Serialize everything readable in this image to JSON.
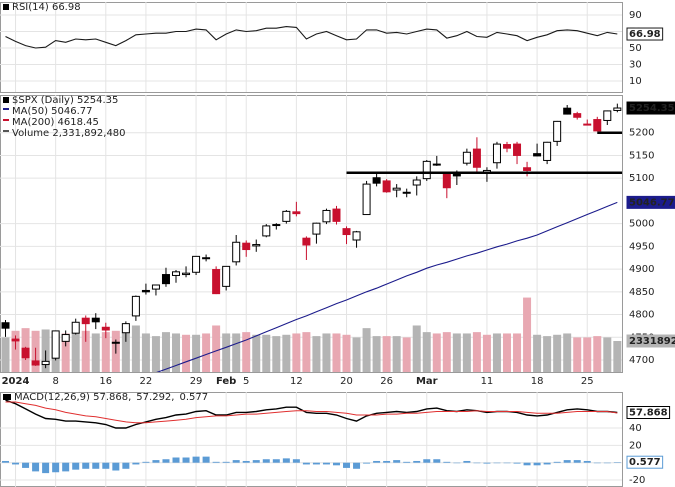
{
  "chart_data": [
    {
      "type": "line",
      "legend": [
        {
          "text": "RSI(14) 66.98",
          "color": "#000000"
        }
      ],
      "series": [
        {
          "type": "line",
          "color": "#1a1a1a",
          "box_style": "outline",
          "values": [
            64,
            58,
            53,
            50,
            51,
            59,
            57,
            61,
            60,
            61,
            57,
            53,
            59,
            66,
            67,
            68,
            68,
            70,
            70,
            73,
            72,
            60,
            67,
            72,
            70,
            71,
            74,
            74,
            76,
            75,
            61,
            67,
            70,
            65,
            60,
            61,
            72,
            72,
            68,
            69,
            67,
            70,
            73,
            72,
            62,
            65,
            70,
            64,
            63,
            69,
            67,
            65,
            59,
            63,
            66,
            71,
            72,
            71,
            68,
            65,
            69,
            66.98
          ]
        }
      ],
      "ylim": [
        -3.3,
        105.8
      ],
      "yticks": [
        10,
        30,
        50,
        70,
        90
      ],
      "grid": true
    },
    {
      "type": "candlestick",
      "legend": [
        {
          "text": "$SPX (Daily) 5254.35",
          "color": "#000000"
        },
        {
          "text": "MA(50) 5046.77",
          "color": "#1c1c8c"
        },
        {
          "text": "MA(200) 4618.45",
          "color": "#c8102e"
        },
        {
          "text": "Volume 2,331,892,480",
          "color": "#555555"
        }
      ],
      "categories": [
        null,
        "2024",
        null,
        null,
        null,
        "8",
        null,
        null,
        null,
        null,
        "16",
        null,
        null,
        null,
        "22",
        null,
        null,
        null,
        null,
        "29",
        null,
        null,
        "Feb",
        null,
        "5",
        null,
        null,
        null,
        null,
        "12",
        null,
        null,
        null,
        null,
        "20",
        null,
        null,
        null,
        "26",
        null,
        null,
        null,
        "Mar",
        null,
        null,
        null,
        null,
        null,
        "11",
        null,
        null,
        null,
        null,
        "18",
        null,
        null,
        null,
        null,
        "25",
        null,
        null,
        null
      ],
      "ohlc": {
        "open": [
          4782,
          4746,
          4726,
          4698,
          4690,
          4704,
          4741,
          4759,
          4792,
          4792,
          4772,
          4739,
          4760,
          4797,
          4853,
          4856,
          4888,
          4886,
          4888,
          4893,
          4925,
          4899,
          4862,
          4916,
          4957,
          4951,
          4973,
          4996,
          5005,
          5026,
          4968,
          4977,
          5004,
          5032,
          4989,
          4964,
          5020,
          5101,
          5094,
          5074,
          5067,
          5085,
          5099,
          5131,
          5111,
          5109,
          5133,
          5164,
          5111,
          5134,
          5174,
          5175,
          5123,
          5154,
          5139,
          5181,
          5254,
          5242,
          5219,
          5229,
          5227,
          5249
        ],
        "high": [
          4788,
          4754,
          4729,
          4727,
          4721,
          4765,
          4765,
          4791,
          4798,
          4803,
          4782,
          4745,
          4785,
          4842,
          4868,
          4866,
          4903,
          4898,
          4906,
          4929,
          4932,
          4906,
          4906,
          4975,
          4963,
          4965,
          4999,
          5001,
          5030,
          5048,
          4972,
          5002,
          5033,
          5039,
          4994,
          4984,
          5094,
          5111,
          5098,
          5087,
          5077,
          5104,
          5140,
          5149,
          5114,
          5117,
          5165,
          5190,
          5124,
          5180,
          5180,
          5180,
          5136,
          5176,
          5180,
          5226,
          5261,
          5246,
          5229,
          5235,
          5249,
          5264
        ],
        "low": [
          4751,
          4723,
          4700,
          4687,
          4682,
          4699,
          4730,
          4756,
          4740,
          4768,
          4748,
          4714,
          4740,
          4786,
          4844,
          4842,
          4861,
          4870,
          4882,
          4887,
          4917,
          4845,
          4853,
          4908,
          4927,
          4938,
          4970,
          4987,
          5000,
          5016,
          4920,
          4956,
          4999,
          4998,
          4955,
          4947,
          5020,
          5082,
          5068,
          5058,
          5058,
          5062,
          5094,
          5127,
          5056,
          5085,
          5128,
          5114,
          5092,
          5121,
          5157,
          5131,
          5104,
          5148,
          5131,
          5171,
          5240,
          5229,
          5216,
          5203,
          5217,
          5245
        ],
        "close": [
          4770,
          4742,
          4705,
          4689,
          4697,
          4764,
          4756,
          4783,
          4780,
          4784,
          4766,
          4739,
          4780,
          4840,
          4850,
          4865,
          4868,
          4894,
          4891,
          4928,
          4925,
          4846,
          4906,
          4959,
          4943,
          4954,
          4995,
          4998,
          5027,
          5022,
          4953,
          5001,
          5029,
          5005,
          4976,
          4982,
          5087,
          5089,
          5070,
          5078,
          5069,
          5096,
          5137,
          5131,
          5079,
          5105,
          5157,
          5124,
          5117,
          5175,
          5166,
          5150,
          5117,
          5149,
          5179,
          5225,
          5241,
          5234,
          5218,
          5204,
          5248,
          5254.35
        ]
      },
      "up_color": "#000000",
      "down_color": "#c8102e",
      "box_color": "#000000",
      "series": [
        {
          "type": "line",
          "color": "#1c1c8c",
          "box_style": "filled",
          "values": [
            4560,
            4568,
            4575,
            4582,
            4590,
            4597,
            4605,
            4612,
            4620,
            4627,
            4635,
            4642,
            4650,
            4658,
            4665,
            4672,
            4680,
            4688,
            4696,
            4704,
            4712,
            4720,
            4728,
            4736,
            4744,
            4753,
            4762,
            4771,
            4780,
            4789,
            4797,
            4806,
            4815,
            4824,
            4832,
            4841,
            4850,
            4858,
            4867,
            4876,
            4885,
            4893,
            4902,
            4909,
            4915,
            4922,
            4929,
            4935,
            4942,
            4949,
            4955,
            4962,
            4968,
            4975,
            4984,
            4993,
            5002,
            5011,
            5020,
            5029,
            5038,
            5046.77
          ]
        },
        {
          "type": "volume",
          "axis": "y2",
          "color": "#b4b4b4",
          "down_color": "#e8a8b2",
          "box_style": "filled",
          "values": [
            2600000,
            3100000,
            3300000,
            3100000,
            3200000,
            3000000,
            2900000,
            3000000,
            3100000,
            2900000,
            3000000,
            3100000,
            3000000,
            3500000,
            2900000,
            2700000,
            3000000,
            2900000,
            2800000,
            2800000,
            2900000,
            3500000,
            2900000,
            2900000,
            3000000,
            2800000,
            2800000,
            2700000,
            2800000,
            2900000,
            3000000,
            2700000,
            2900000,
            2900000,
            2800000,
            2600000,
            3300000,
            2700000,
            2700000,
            2700000,
            2600000,
            3500000,
            3000000,
            2900000,
            3000000,
            2900000,
            2900000,
            3000000,
            2800000,
            2900000,
            2900000,
            2900000,
            5600000,
            2800000,
            2700000,
            2800000,
            2900000,
            2600000,
            2600000,
            2700000,
            2600000,
            2331892
          ]
        }
      ],
      "levels": [
        5112,
        5200
      ],
      "ylim": [
        4673.6,
        5283
      ],
      "yticks": [
        4700,
        4750,
        4800,
        4850,
        4900,
        4950,
        5000,
        5100,
        5150,
        5200
      ],
      "y2lim": [
        0,
        20840000
      ],
      "grid": true
    },
    {
      "type": "line",
      "legend": [
        {
          "text": "MACD(12,26,9) 57.868,",
          "color": "#000000"
        },
        {
          "text": "57.292,",
          "color": "#e03030"
        },
        {
          "text": "0.577",
          "color": "#3f86c8"
        }
      ],
      "series": [
        {
          "type": "line",
          "color": "#000000",
          "width": 1.4,
          "box_style": "outline",
          "values": [
            72,
            68,
            62,
            56,
            51,
            50,
            48,
            48,
            47,
            46,
            44,
            40,
            40,
            44,
            47,
            50,
            52,
            55,
            56,
            59,
            60,
            55,
            55,
            58,
            58,
            59,
            61,
            62,
            64,
            64,
            58,
            57,
            57,
            55,
            51,
            48,
            54,
            57,
            58,
            59,
            58,
            59,
            62,
            63,
            60,
            59,
            61,
            60,
            58,
            59,
            59,
            58,
            55,
            54,
            55,
            58,
            61,
            62,
            61,
            59,
            59,
            57.868
          ]
        },
        {
          "type": "line",
          "color": "#e03030",
          "width": 1,
          "values": [
            70,
            70,
            68,
            66,
            63,
            61,
            58,
            56,
            54,
            53,
            51,
            49,
            47,
            46,
            46,
            47,
            48,
            49,
            50,
            52,
            53,
            54,
            54,
            55,
            56,
            56,
            57,
            58,
            59,
            60,
            60,
            59,
            59,
            58,
            57,
            55,
            55,
            55,
            56,
            56,
            57,
            57,
            58,
            59,
            59,
            59,
            59,
            60,
            59,
            59,
            59,
            59,
            58,
            57,
            57,
            57,
            58,
            59,
            59,
            59,
            59,
            57.292
          ]
        },
        {
          "type": "bar",
          "color": "#5b9bd5",
          "box_style": "outline",
          "values": [
            2,
            -2,
            -6,
            -10,
            -12,
            -11,
            -10,
            -8,
            -7,
            -7,
            -7,
            -9,
            -7,
            -2,
            1,
            3,
            4,
            6,
            6,
            7,
            7,
            1,
            1,
            3,
            2,
            3,
            4,
            4,
            5,
            4,
            -2,
            -2,
            -2,
            -3,
            -6,
            -7,
            -1,
            2,
            2,
            3,
            1,
            2,
            4,
            4,
            1,
            0,
            2,
            0,
            -1,
            0,
            0,
            -1,
            -3,
            -3,
            -2,
            1,
            3,
            3,
            2,
            0,
            0,
            0.577
          ]
        }
      ],
      "ylim": [
        -28,
        81.5
      ],
      "yticks": [
        -20,
        0,
        20,
        40
      ],
      "grid": true
    }
  ]
}
